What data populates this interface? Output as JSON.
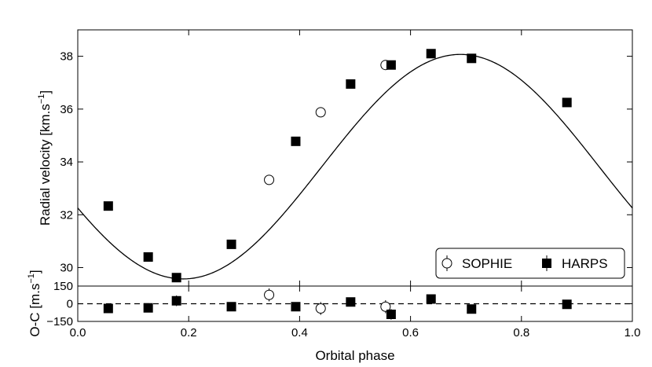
{
  "chart_data": {
    "type": "scatter",
    "x_axis": {
      "label": "Orbital phase",
      "range": [
        0.0,
        1.0
      ],
      "ticks": [
        0.0,
        0.2,
        0.4,
        0.6,
        0.8,
        1.0
      ],
      "tick_labels": [
        "0.0",
        "0.2",
        "0.4",
        "0.6",
        "0.8",
        "1.0"
      ]
    },
    "top_panel": {
      "ylabel": "Radial velocity [km.s",
      "ylabel_superscript": "−1",
      "ylabel_suffix": "]",
      "ylim": [
        29.3,
        39.0
      ],
      "yticks": [
        30,
        32,
        34,
        36,
        38
      ],
      "ytick_labels": [
        "30",
        "32",
        "34",
        "36",
        "38"
      ],
      "model_curve": {
        "gamma": 33.82,
        "semi_amplitude": 4.25,
        "min_phase": 0.19
      },
      "series": [
        {
          "name": "SOPHIE",
          "marker": "open-circle",
          "points": [
            {
              "x": 0.345,
              "y": 33.32
            },
            {
              "x": 0.438,
              "y": 35.88
            },
            {
              "x": 0.555,
              "y": 37.67
            }
          ]
        },
        {
          "name": "HARPS",
          "marker": "filled-square",
          "points": [
            {
              "x": 0.055,
              "y": 32.33
            },
            {
              "x": 0.127,
              "y": 30.4
            },
            {
              "x": 0.178,
              "y": 29.62
            },
            {
              "x": 0.277,
              "y": 30.88
            },
            {
              "x": 0.393,
              "y": 34.78
            },
            {
              "x": 0.492,
              "y": 36.95
            },
            {
              "x": 0.565,
              "y": 37.67
            },
            {
              "x": 0.637,
              "y": 38.1
            },
            {
              "x": 0.71,
              "y": 37.92
            },
            {
              "x": 0.882,
              "y": 36.25
            }
          ]
        }
      ],
      "legend": {
        "position": "lower-right",
        "entries": [
          "SOPHIE",
          "HARPS"
        ]
      }
    },
    "bottom_panel": {
      "ylabel": "O-C [m.s",
      "ylabel_superscript": "−1",
      "ylabel_suffix": "]",
      "ylim": [
        -150,
        150
      ],
      "yticks": [
        150,
        0,
        -150
      ],
      "ytick_labels": [
        "150",
        "0",
        "−150"
      ],
      "zero_line": "dashed",
      "series": [
        {
          "name": "SOPHIE",
          "marker": "open-circle",
          "points": [
            {
              "x": 0.345,
              "y": 75,
              "err": 55
            },
            {
              "x": 0.438,
              "y": -40,
              "err": 55
            },
            {
              "x": 0.555,
              "y": -25,
              "err": 55
            }
          ]
        },
        {
          "name": "HARPS",
          "marker": "filled-square",
          "points": [
            {
              "x": 0.055,
              "y": -40,
              "err": 20
            },
            {
              "x": 0.127,
              "y": -35,
              "err": 20
            },
            {
              "x": 0.178,
              "y": 25,
              "err": 45
            },
            {
              "x": 0.277,
              "y": -25,
              "err": 25
            },
            {
              "x": 0.393,
              "y": -25,
              "err": 20
            },
            {
              "x": 0.492,
              "y": 15,
              "err": 20
            },
            {
              "x": 0.565,
              "y": -90,
              "err": 45
            },
            {
              "x": 0.637,
              "y": 40,
              "err": 20
            },
            {
              "x": 0.71,
              "y": -45,
              "err": 35
            },
            {
              "x": 0.882,
              "y": -5,
              "err": 20
            }
          ]
        }
      ]
    }
  }
}
